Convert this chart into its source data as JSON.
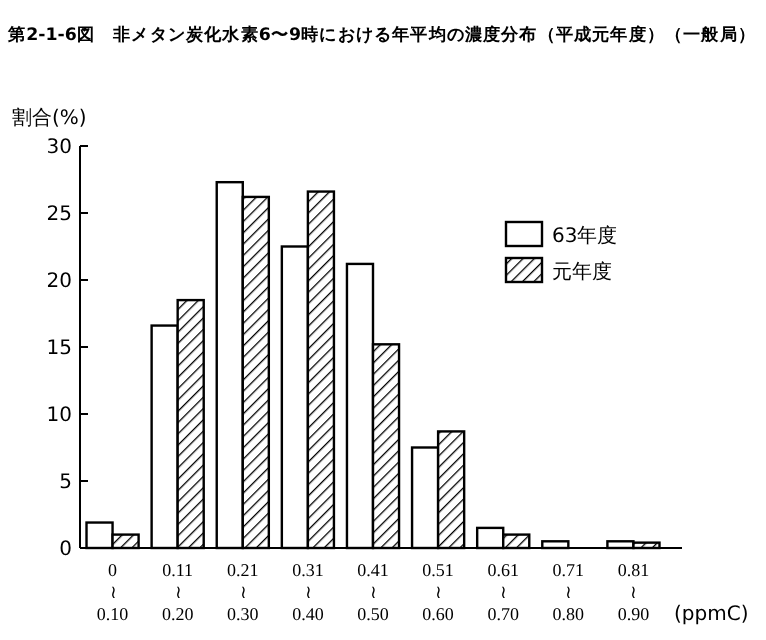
{
  "chart_data": {
    "type": "bar",
    "title": "第2-1-6図　非メタン炭化水素6〜9時における年平均の濃度分布（平成元年度）（一般局）",
    "ylabel": "割合(%)",
    "xlabel": "(ppmC)",
    "categories": [
      "0\n≀\n0.10",
      "0.11\n≀\n0.20",
      "0.21\n≀\n0.30",
      "0.31\n≀\n0.40",
      "0.41\n≀\n0.50",
      "0.51\n≀\n0.60",
      "0.61\n≀\n0.70",
      "0.71\n≀\n0.80",
      "0.81\n≀\n0.90"
    ],
    "series": [
      {
        "name": "63年度",
        "color": "#ffffff",
        "values": [
          1.9,
          16.6,
          27.3,
          22.5,
          21.2,
          7.5,
          1.5,
          0.5,
          0.5
        ]
      },
      {
        "name": "元年度",
        "color": "#000000",
        "values": [
          1.0,
          18.5,
          26.2,
          26.6,
          15.2,
          8.7,
          1.0,
          0,
          0.4
        ]
      }
    ],
    "ylim": [
      0,
      30
    ],
    "yticks": [
      0,
      5,
      10,
      15,
      20,
      25,
      30
    ],
    "grid": false,
    "legend": "right"
  }
}
